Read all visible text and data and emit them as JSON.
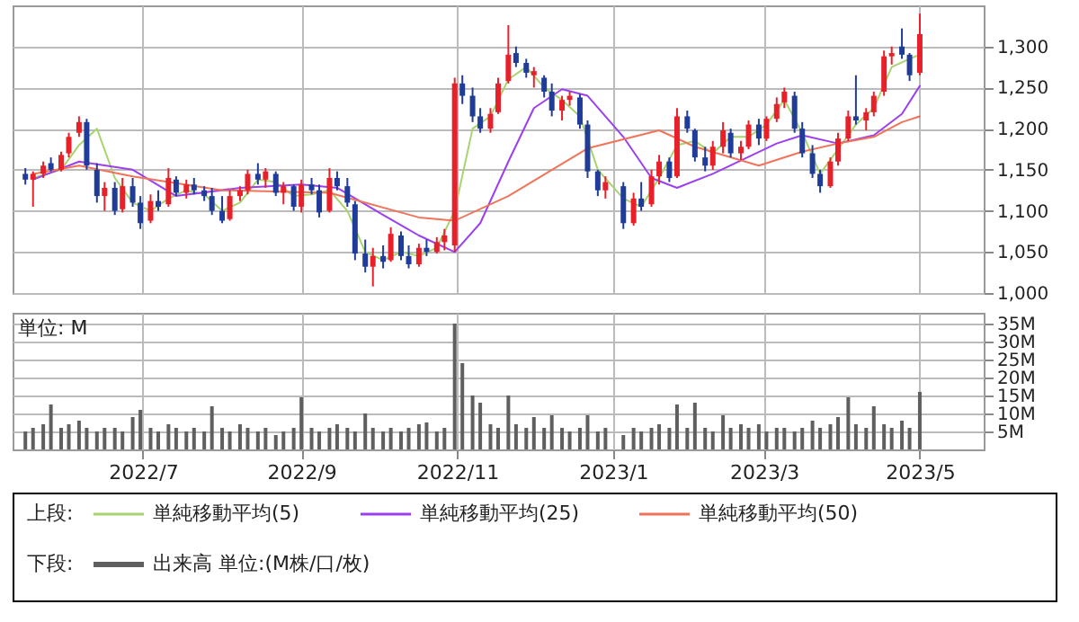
{
  "chart_data": [
    {
      "type": "candlestick",
      "legend_title": "上段:",
      "legend": "bottom",
      "grid": true,
      "tick_labels": "y",
      "xlim": [
        "2022-05-11",
        "2023-05-26"
      ],
      "xticks": [
        {
          "value": "2022-07-01",
          "label": null
        },
        {
          "value": "2022-09-01",
          "label": null
        },
        {
          "value": "2022-11-01",
          "label": null
        },
        {
          "value": "2023-01-01",
          "label": null
        },
        {
          "value": "2023-03-01",
          "label": null
        },
        {
          "value": "2023-05-01",
          "label": null
        }
      ],
      "ylim": [
        1000,
        1350
      ],
      "yticks": [
        {
          "value": 1000,
          "label": "1,000"
        },
        {
          "value": 1050,
          "label": "1,050"
        },
        {
          "value": 1100,
          "label": "1,100"
        },
        {
          "value": 1150,
          "label": "1,150"
        },
        {
          "value": 1200,
          "label": "1,200"
        },
        {
          "value": 1250,
          "label": "1,250"
        },
        {
          "value": 1300,
          "label": "1,300"
        }
      ],
      "x": [
        "2022-05-16",
        "2022-05-19",
        "2022-05-23",
        "2022-05-26",
        "2022-05-30",
        "2022-06-02",
        "2022-06-06",
        "2022-06-09",
        "2022-06-13",
        "2022-06-16",
        "2022-06-20",
        "2022-06-23",
        "2022-06-27",
        "2022-06-30",
        "2022-07-04",
        "2022-07-07",
        "2022-07-11",
        "2022-07-14",
        "2022-07-18",
        "2022-07-21",
        "2022-07-25",
        "2022-07-28",
        "2022-08-01",
        "2022-08-04",
        "2022-08-08",
        "2022-08-11",
        "2022-08-15",
        "2022-08-18",
        "2022-08-22",
        "2022-08-25",
        "2022-08-29",
        "2022-09-01",
        "2022-09-05",
        "2022-09-08",
        "2022-09-12",
        "2022-09-15",
        "2022-09-19",
        "2022-09-22",
        "2022-09-26",
        "2022-09-29",
        "2022-10-03",
        "2022-10-06",
        "2022-10-10",
        "2022-10-13",
        "2022-10-17",
        "2022-10-20",
        "2022-10-24",
        "2022-10-27",
        "2022-10-31",
        "2022-11-03",
        "2022-11-07",
        "2022-11-10",
        "2022-11-14",
        "2022-11-17",
        "2022-11-21",
        "2022-11-24",
        "2022-11-28",
        "2022-12-01",
        "2022-12-05",
        "2022-12-08",
        "2022-12-12",
        "2022-12-15",
        "2022-12-19",
        "2022-12-22",
        "2022-12-26",
        "2022-12-29",
        "2023-01-05",
        "2023-01-09",
        "2023-01-12",
        "2023-01-16",
        "2023-01-19",
        "2023-01-23",
        "2023-01-26",
        "2023-01-30",
        "2023-02-02",
        "2023-02-06",
        "2023-02-09",
        "2023-02-13",
        "2023-02-16",
        "2023-02-20",
        "2023-02-23",
        "2023-02-27",
        "2023-03-02",
        "2023-03-06",
        "2023-03-09",
        "2023-03-13",
        "2023-03-16",
        "2023-03-20",
        "2023-03-23",
        "2023-03-27",
        "2023-03-30",
        "2023-04-03",
        "2023-04-06",
        "2023-04-10",
        "2023-04-13",
        "2023-04-17",
        "2023-04-20",
        "2023-04-24",
        "2023-04-27",
        "2023-05-01"
      ],
      "ohlc": [
        [
          1145,
          1152,
          1132,
          1138
        ],
        [
          1138,
          1148,
          1105,
          1145
        ],
        [
          1145,
          1160,
          1140,
          1155
        ],
        [
          1158,
          1165,
          1148,
          1150
        ],
        [
          1150,
          1172,
          1148,
          1168
        ],
        [
          1170,
          1195,
          1165,
          1190
        ],
        [
          1195,
          1215,
          1190,
          1208
        ],
        [
          1208,
          1212,
          1150,
          1155
        ],
        [
          1150,
          1158,
          1110,
          1118
        ],
        [
          1118,
          1135,
          1100,
          1128
        ],
        [
          1128,
          1135,
          1095,
          1100
        ],
        [
          1102,
          1140,
          1098,
          1130
        ],
        [
          1130,
          1140,
          1105,
          1110
        ],
        [
          1110,
          1118,
          1078,
          1085
        ],
        [
          1088,
          1120,
          1085,
          1112
        ],
        [
          1112,
          1125,
          1100,
          1105
        ],
        [
          1108,
          1152,
          1105,
          1140
        ],
        [
          1138,
          1142,
          1118,
          1122
        ],
        [
          1122,
          1138,
          1115,
          1132
        ],
        [
          1132,
          1140,
          1120,
          1125
        ],
        [
          1125,
          1130,
          1112,
          1118
        ],
        [
          1118,
          1128,
          1095,
          1100
        ],
        [
          1100,
          1118,
          1085,
          1088
        ],
        [
          1090,
          1125,
          1088,
          1118
        ],
        [
          1118,
          1130,
          1112,
          1125
        ],
        [
          1125,
          1150,
          1120,
          1145
        ],
        [
          1145,
          1158,
          1132,
          1138
        ],
        [
          1138,
          1152,
          1128,
          1148
        ],
        [
          1145,
          1148,
          1118,
          1122
        ],
        [
          1122,
          1135,
          1108,
          1130
        ],
        [
          1130,
          1132,
          1100,
          1105
        ],
        [
          1105,
          1138,
          1098,
          1132
        ],
        [
          1132,
          1140,
          1120,
          1125
        ],
        [
          1125,
          1132,
          1092,
          1098
        ],
        [
          1100,
          1152,
          1098,
          1140
        ],
        [
          1140,
          1148,
          1125,
          1130
        ],
        [
          1130,
          1140,
          1105,
          1110
        ],
        [
          1108,
          1112,
          1040,
          1048
        ],
        [
          1048,
          1065,
          1025,
          1032
        ],
        [
          1032,
          1055,
          1008,
          1045
        ],
        [
          1045,
          1058,
          1030,
          1038
        ],
        [
          1040,
          1080,
          1038,
          1072
        ],
        [
          1070,
          1075,
          1040,
          1045
        ],
        [
          1045,
          1058,
          1030,
          1035
        ],
        [
          1035,
          1060,
          1032,
          1055
        ],
        [
          1055,
          1065,
          1045,
          1050
        ],
        [
          1050,
          1068,
          1048,
          1062
        ],
        [
          1062,
          1078,
          1052,
          1070
        ],
        [
          1058,
          1262,
          1050,
          1255
        ],
        [
          1255,
          1265,
          1230,
          1240
        ],
        [
          1240,
          1250,
          1208,
          1215
        ],
        [
          1215,
          1225,
          1195,
          1200
        ],
        [
          1200,
          1225,
          1195,
          1218
        ],
        [
          1220,
          1262,
          1218,
          1255
        ],
        [
          1258,
          1326,
          1255,
          1290
        ],
        [
          1292,
          1300,
          1275,
          1280
        ],
        [
          1280,
          1285,
          1262,
          1268
        ],
        [
          1265,
          1275,
          1250,
          1270
        ],
        [
          1262,
          1265,
          1238,
          1245
        ],
        [
          1245,
          1255,
          1215,
          1222
        ],
        [
          1222,
          1240,
          1210,
          1235
        ],
        [
          1235,
          1245,
          1228,
          1240
        ],
        [
          1238,
          1242,
          1200,
          1205
        ],
        [
          1205,
          1210,
          1140,
          1148
        ],
        [
          1148,
          1150,
          1118,
          1125
        ],
        [
          1125,
          1142,
          1115,
          1135
        ],
        [
          1130,
          1135,
          1078,
          1085
        ],
        [
          1085,
          1122,
          1082,
          1115
        ],
        [
          1115,
          1135,
          1100,
          1105
        ],
        [
          1108,
          1150,
          1105,
          1142
        ],
        [
          1142,
          1168,
          1132,
          1160
        ],
        [
          1160,
          1165,
          1135,
          1140
        ],
        [
          1142,
          1225,
          1140,
          1215
        ],
        [
          1215,
          1222,
          1195,
          1200
        ],
        [
          1198,
          1200,
          1160,
          1165
        ],
        [
          1165,
          1178,
          1148,
          1155
        ],
        [
          1155,
          1185,
          1150,
          1178
        ],
        [
          1178,
          1208,
          1170,
          1198
        ],
        [
          1195,
          1200,
          1165,
          1170
        ],
        [
          1170,
          1185,
          1162,
          1178
        ],
        [
          1178,
          1210,
          1175,
          1205
        ],
        [
          1205,
          1212,
          1180,
          1188
        ],
        [
          1188,
          1215,
          1185,
          1212
        ],
        [
          1212,
          1238,
          1208,
          1230
        ],
        [
          1232,
          1250,
          1225,
          1245
        ],
        [
          1240,
          1245,
          1195,
          1200
        ],
        [
          1200,
          1208,
          1165,
          1170
        ],
        [
          1170,
          1180,
          1140,
          1145
        ],
        [
          1145,
          1150,
          1122,
          1130
        ],
        [
          1130,
          1165,
          1128,
          1160
        ],
        [
          1160,
          1195,
          1155,
          1188
        ],
        [
          1188,
          1222,
          1185,
          1215
        ],
        [
          1215,
          1265,
          1205,
          1210
        ],
        [
          1210,
          1225,
          1198,
          1220
        ],
        [
          1220,
          1245,
          1215,
          1240
        ],
        [
          1245,
          1295,
          1240,
          1288
        ],
        [
          1288,
          1300,
          1278,
          1292
        ],
        [
          1300,
          1322,
          1285,
          1290
        ],
        [
          1290,
          1292,
          1258,
          1265
        ],
        [
          1268,
          1340,
          1265,
          1315
        ]
      ],
      "series": [
        {
          "name": "単純移動平均(5)",
          "color": "#a8d46f",
          "type": "line",
          "x": [
            "2022-05-19",
            "2022-05-30",
            "2022-06-06",
            "2022-06-13",
            "2022-06-20",
            "2022-06-27",
            "2022-07-04",
            "2022-07-11",
            "2022-07-18",
            "2022-07-25",
            "2022-08-01",
            "2022-08-08",
            "2022-08-15",
            "2022-08-22",
            "2022-08-29",
            "2022-09-05",
            "2022-09-12",
            "2022-09-19",
            "2022-09-26",
            "2022-10-03",
            "2022-10-10",
            "2022-10-17",
            "2022-10-24",
            "2022-10-31",
            "2022-11-07",
            "2022-11-14",
            "2022-11-21",
            "2022-11-28",
            "2022-12-05",
            "2022-12-12",
            "2022-12-19",
            "2022-12-26",
            "2023-01-05",
            "2023-01-12",
            "2023-01-19",
            "2023-01-26",
            "2023-02-02",
            "2023-02-09",
            "2023-02-16",
            "2023-02-23",
            "2023-03-02",
            "2023-03-09",
            "2023-03-16",
            "2023-03-23",
            "2023-03-30",
            "2023-04-06",
            "2023-04-13",
            "2023-04-20",
            "2023-04-27",
            "2023-05-01"
          ],
          "values": [
            1140,
            1150,
            1180,
            1200,
            1140,
            1110,
            1100,
            1115,
            1125,
            1120,
            1100,
            1110,
            1138,
            1135,
            1118,
            1120,
            1125,
            1100,
            1050,
            1040,
            1050,
            1045,
            1055,
            1100,
            1200,
            1215,
            1260,
            1275,
            1250,
            1235,
            1215,
            1150,
            1115,
            1105,
            1140,
            1180,
            1185,
            1170,
            1190,
            1190,
            1205,
            1235,
            1195,
            1145,
            1175,
            1205,
            1225,
            1275,
            1285,
            1290
          ]
        },
        {
          "name": "単純移動平均(25)",
          "color": "#9b3ff0",
          "type": "line",
          "x": [
            "2022-05-19",
            "2022-06-06",
            "2022-06-27",
            "2022-07-14",
            "2022-08-08",
            "2022-09-01",
            "2022-09-15",
            "2022-10-03",
            "2022-10-17",
            "2022-10-31",
            "2022-11-10",
            "2022-11-21",
            "2022-12-01",
            "2022-12-12",
            "2022-12-22",
            "2023-01-05",
            "2023-01-16",
            "2023-01-26",
            "2023-02-09",
            "2023-03-06",
            "2023-03-16",
            "2023-03-30",
            "2023-04-13",
            "2023-04-24",
            "2023-05-01"
          ],
          "values": [
            1138,
            1160,
            1150,
            1118,
            1128,
            1132,
            1128,
            1095,
            1070,
            1050,
            1085,
            1160,
            1225,
            1248,
            1240,
            1190,
            1140,
            1128,
            1145,
            1182,
            1192,
            1182,
            1192,
            1218,
            1252
          ]
        },
        {
          "name": "単純移動平均(50)",
          "color": "#f0735a",
          "type": "line",
          "x": [
            "2022-05-19",
            "2022-06-06",
            "2022-06-27",
            "2022-08-01",
            "2022-09-12",
            "2022-10-17",
            "2022-10-31",
            "2022-11-21",
            "2022-12-22",
            "2023-01-19",
            "2023-02-02",
            "2023-02-27",
            "2023-03-16",
            "2023-03-30",
            "2023-04-13",
            "2023-04-24",
            "2023-05-01"
          ],
          "values": [
            1145,
            1155,
            1142,
            1125,
            1122,
            1092,
            1088,
            1118,
            1176,
            1198,
            1178,
            1155,
            1172,
            1182,
            1190,
            1208,
            1215
          ]
        }
      ]
    },
    {
      "type": "bar",
      "ylabel": "単位: M",
      "legend_title": "下段:",
      "legend": "bottom",
      "grid": true,
      "xlim": [
        "2022-05-11",
        "2023-05-26"
      ],
      "xticks": [
        {
          "value": "2022-07-01",
          "label": "2022/7"
        },
        {
          "value": "2022-09-01",
          "label": "2022/9"
        },
        {
          "value": "2022-11-01",
          "label": "2022/11"
        },
        {
          "value": "2023-01-01",
          "label": "2023/1"
        },
        {
          "value": "2023-03-01",
          "label": "2023/3"
        },
        {
          "value": "2023-05-01",
          "label": "2023/5"
        }
      ],
      "ylim": [
        0,
        38
      ],
      "yticks": [
        {
          "value": 5,
          "label": "5M"
        },
        {
          "value": 10,
          "label": "10M"
        },
        {
          "value": 15,
          "label": "15M"
        },
        {
          "value": 20,
          "label": "20M"
        },
        {
          "value": 25,
          "label": "25M"
        },
        {
          "value": 30,
          "label": "30M"
        },
        {
          "value": 35,
          "label": "35M"
        }
      ],
      "x": [
        "2022-05-16",
        "2022-05-19",
        "2022-05-23",
        "2022-05-26",
        "2022-05-30",
        "2022-06-02",
        "2022-06-06",
        "2022-06-09",
        "2022-06-13",
        "2022-06-16",
        "2022-06-20",
        "2022-06-23",
        "2022-06-27",
        "2022-06-30",
        "2022-07-04",
        "2022-07-07",
        "2022-07-11",
        "2022-07-14",
        "2022-07-18",
        "2022-07-21",
        "2022-07-25",
        "2022-07-28",
        "2022-08-01",
        "2022-08-04",
        "2022-08-08",
        "2022-08-11",
        "2022-08-15",
        "2022-08-18",
        "2022-08-22",
        "2022-08-25",
        "2022-08-29",
        "2022-09-01",
        "2022-09-05",
        "2022-09-08",
        "2022-09-12",
        "2022-09-15",
        "2022-09-19",
        "2022-09-22",
        "2022-09-26",
        "2022-09-29",
        "2022-10-03",
        "2022-10-06",
        "2022-10-10",
        "2022-10-13",
        "2022-10-17",
        "2022-10-20",
        "2022-10-24",
        "2022-10-27",
        "2022-10-31",
        "2022-11-03",
        "2022-11-07",
        "2022-11-10",
        "2022-11-14",
        "2022-11-17",
        "2022-11-21",
        "2022-11-24",
        "2022-11-28",
        "2022-12-01",
        "2022-12-05",
        "2022-12-08",
        "2022-12-12",
        "2022-12-15",
        "2022-12-19",
        "2022-12-22",
        "2022-12-26",
        "2022-12-29",
        "2023-01-05",
        "2023-01-09",
        "2023-01-12",
        "2023-01-16",
        "2023-01-19",
        "2023-01-23",
        "2023-01-26",
        "2023-01-30",
        "2023-02-02",
        "2023-02-06",
        "2023-02-09",
        "2023-02-13",
        "2023-02-16",
        "2023-02-20",
        "2023-02-23",
        "2023-02-27",
        "2023-03-02",
        "2023-03-06",
        "2023-03-09",
        "2023-03-13",
        "2023-03-16",
        "2023-03-20",
        "2023-03-23",
        "2023-03-27",
        "2023-03-30",
        "2023-04-03",
        "2023-04-06",
        "2023-04-10",
        "2023-04-13",
        "2023-04-17",
        "2023-04-20",
        "2023-04-24",
        "2023-04-27",
        "2023-05-01"
      ],
      "series": [
        {
          "name": "出来高 単位:(M株/口/枚)",
          "color": "#5f5f5f",
          "values": [
            5,
            6,
            7,
            12.5,
            6,
            7,
            8,
            6,
            5,
            6,
            6,
            5,
            9,
            11,
            6,
            5,
            7,
            6,
            5,
            6,
            5,
            12,
            6,
            5,
            7,
            6,
            5,
            6,
            4,
            5,
            6,
            14.5,
            6,
            5,
            6,
            7,
            6,
            5,
            10,
            6,
            5,
            6,
            5,
            6,
            7,
            7.5,
            5,
            6,
            35,
            24,
            15,
            13,
            7,
            6,
            15,
            7,
            6,
            9,
            6,
            9.5,
            6,
            5,
            6,
            9.5,
            5,
            6,
            4,
            6,
            5,
            6,
            7,
            6,
            12.5,
            6,
            13,
            6,
            5,
            9.5,
            6,
            7,
            6,
            7,
            5,
            6,
            6,
            5,
            6,
            8,
            6,
            7,
            9,
            14.5,
            7,
            6,
            12,
            7,
            6,
            8,
            6,
            16
          ]
        }
      ]
    }
  ]
}
